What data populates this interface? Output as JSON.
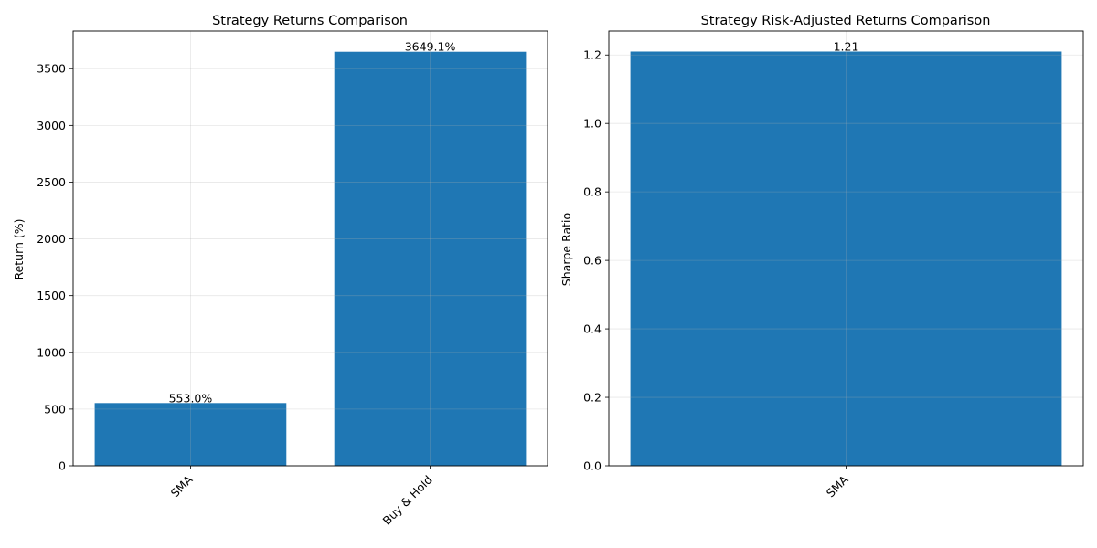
{
  "chart_data": [
    {
      "type": "bar",
      "title": "Strategy Returns Comparison",
      "xlabel": "",
      "ylabel": "Return (%)",
      "categories": [
        "SMA",
        "Buy & Hold"
      ],
      "values": [
        553.0,
        3649.1
      ],
      "value_labels": [
        "553.0%",
        "3649.1%"
      ],
      "ylim": [
        0,
        3832
      ],
      "yticks": [
        0,
        500,
        1000,
        1500,
        2000,
        2500,
        3000,
        3500
      ],
      "ytick_labels": [
        "0",
        "500",
        "1000",
        "1500",
        "2000",
        "2500",
        "3000",
        "3500"
      ],
      "grid": true,
      "bar_color": "#1f77b4"
    },
    {
      "type": "bar",
      "title": "Strategy Risk-Adjusted Returns Comparison",
      "xlabel": "",
      "ylabel": "Sharpe Ratio",
      "categories": [
        "SMA"
      ],
      "values": [
        1.21
      ],
      "value_labels": [
        "1.21"
      ],
      "ylim": [
        0,
        1.27
      ],
      "yticks": [
        0.0,
        0.2,
        0.4,
        0.6,
        0.8,
        1.0,
        1.2
      ],
      "ytick_labels": [
        "0.0",
        "0.2",
        "0.4",
        "0.6",
        "0.8",
        "1.0",
        "1.2"
      ],
      "grid": true,
      "bar_color": "#1f77b4"
    }
  ]
}
